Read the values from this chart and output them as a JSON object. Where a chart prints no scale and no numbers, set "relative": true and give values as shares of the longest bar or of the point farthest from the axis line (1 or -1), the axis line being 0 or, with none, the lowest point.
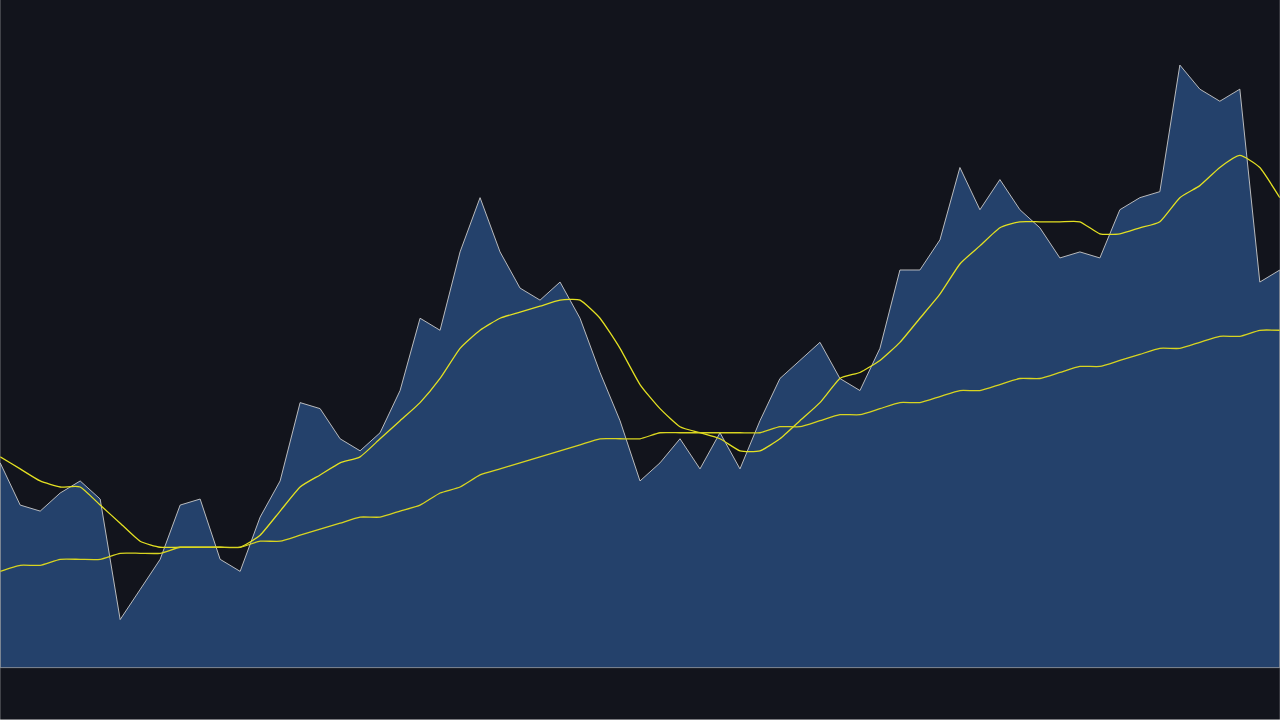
{
  "chart_data": {
    "type": "line",
    "relative": true,
    "categories": [
      null,
      null,
      null,
      null,
      null,
      null,
      null,
      null,
      null,
      null,
      null,
      null,
      null,
      null,
      null,
      null,
      null,
      null,
      null,
      null,
      null,
      null,
      null,
      null,
      null,
      null,
      null,
      null,
      null,
      null,
      null,
      null,
      null,
      null,
      null,
      null,
      null,
      null,
      null,
      null,
      null,
      null,
      null,
      null,
      null,
      null,
      null,
      null,
      null,
      null,
      null,
      null,
      null,
      null,
      null,
      null,
      null,
      null,
      null,
      null,
      null,
      null,
      null,
      null,
      null
    ],
    "series": [
      {
        "type": "area",
        "color": "#24416b",
        "values": [
          0.34,
          0.27,
          0.26,
          0.29,
          0.31,
          0.28,
          0.08,
          0.13,
          0.18,
          0.27,
          0.28,
          0.18,
          0.16,
          0.25,
          0.31,
          0.44,
          0.43,
          0.38,
          0.36,
          0.39,
          0.46,
          0.58,
          0.56,
          0.69,
          0.78,
          0.69,
          0.63,
          0.61,
          0.64,
          0.58,
          0.49,
          0.41,
          0.31,
          0.34,
          0.38,
          0.33,
          0.39,
          0.33,
          0.41,
          0.48,
          0.51,
          0.54,
          0.48,
          0.46,
          0.53,
          0.66,
          0.66,
          0.71,
          0.83,
          0.76,
          0.81,
          0.76,
          0.73,
          0.68,
          0.69,
          0.68,
          0.76,
          0.78,
          0.79,
          1.0,
          0.96,
          0.94,
          0.96,
          0.64,
          0.66
        ]
      },
      {
        "color": "#e3e022",
        "values": [
          0.35,
          0.33,
          0.31,
          0.3,
          0.3,
          0.27,
          0.24,
          0.21,
          0.2,
          0.2,
          0.2,
          0.2,
          0.2,
          0.22,
          0.26,
          0.3,
          0.32,
          0.34,
          0.35,
          0.38,
          0.41,
          0.44,
          0.48,
          0.53,
          0.56,
          0.58,
          0.59,
          0.6,
          0.61,
          0.61,
          0.58,
          0.53,
          0.47,
          0.43,
          0.4,
          0.39,
          0.38,
          0.36,
          0.36,
          0.38,
          0.41,
          0.44,
          0.48,
          0.49,
          0.51,
          0.54,
          0.58,
          0.62,
          0.67,
          0.7,
          0.73,
          0.74,
          0.74,
          0.74,
          0.74,
          0.72,
          0.72,
          0.73,
          0.74,
          0.78,
          0.8,
          0.83,
          0.85,
          0.83,
          0.78
        ]
      },
      {
        "color": "#d8d420",
        "values": [
          0.16,
          0.17,
          0.17,
          0.18,
          0.18,
          0.18,
          0.19,
          0.19,
          0.19,
          0.2,
          0.2,
          0.2,
          0.2,
          0.21,
          0.21,
          0.22,
          0.23,
          0.24,
          0.25,
          0.25,
          0.26,
          0.27,
          0.29,
          0.3,
          0.32,
          0.33,
          0.34,
          0.35,
          0.36,
          0.37,
          0.38,
          0.38,
          0.38,
          0.39,
          0.39,
          0.39,
          0.39,
          0.39,
          0.39,
          0.4,
          0.4,
          0.41,
          0.42,
          0.42,
          0.43,
          0.44,
          0.44,
          0.45,
          0.46,
          0.46,
          0.47,
          0.48,
          0.48,
          0.49,
          0.5,
          0.5,
          0.51,
          0.52,
          0.53,
          0.53,
          0.54,
          0.55,
          0.55,
          0.56,
          0.56
        ]
      }
    ]
  }
}
